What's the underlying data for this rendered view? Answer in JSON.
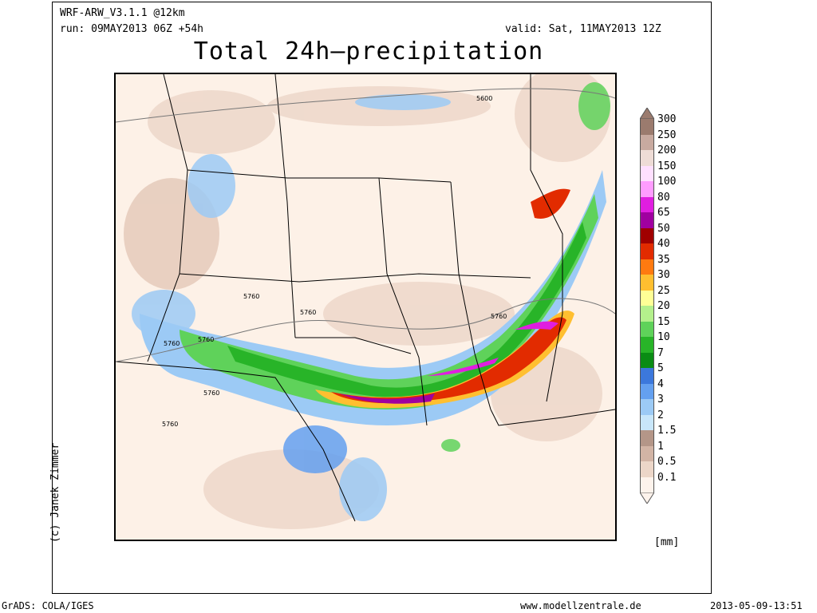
{
  "header": {
    "model": "WRF-ARW_V3.1.1 @12km",
    "run": "run: 09MAY2013 06Z +54h",
    "valid": "valid: Sat, 11MAY2013 12Z",
    "title": "Total 24h–precipitation"
  },
  "credit": "(c) Janek Zimmer",
  "legend": {
    "unit": "[mm]",
    "levels": [
      {
        "label": "300",
        "color": "#9b7b6e"
      },
      {
        "label": "250",
        "color": "#c8aaa0"
      },
      {
        "label": "200",
        "color": "#eedcd6"
      },
      {
        "label": "150",
        "color": "#ffe0ff"
      },
      {
        "label": "100",
        "color": "#ff9cff"
      },
      {
        "label": "80",
        "color": "#e01ee0"
      },
      {
        "label": "65",
        "color": "#a000a0"
      },
      {
        "label": "50",
        "color": "#a00000"
      },
      {
        "label": "40",
        "color": "#e22b00"
      },
      {
        "label": "35",
        "color": "#ff7a10"
      },
      {
        "label": "30",
        "color": "#ffbf30"
      },
      {
        "label": "25",
        "color": "#ffff96"
      },
      {
        "label": "20",
        "color": "#b4f08c"
      },
      {
        "label": "15",
        "color": "#5fd25a"
      },
      {
        "label": "10",
        "color": "#28b428"
      },
      {
        "label": "7",
        "color": "#0a8c14"
      },
      {
        "label": "5",
        "color": "#3c78dc"
      },
      {
        "label": "4",
        "color": "#64a0f0"
      },
      {
        "label": "3",
        "color": "#9ccaf5"
      },
      {
        "label": "2",
        "color": "#c8e6fa"
      },
      {
        "label": "1.5",
        "color": "#b49688"
      },
      {
        "label": "1",
        "color": "#d2b4a5"
      },
      {
        "label": "0.5",
        "color": "#ecd6c8"
      },
      {
        "label": "0.1",
        "color": "#fdf3ec"
      }
    ]
  },
  "map": {
    "contour_labels": [
      "5600",
      "5760",
      "5760",
      "5760",
      "5760",
      "5760",
      "5760",
      "5760"
    ]
  },
  "footer": {
    "left": "GrADS: COLA/IGES",
    "center": "www.modellzentrale.de",
    "right": "2013-05-09-13:51"
  }
}
